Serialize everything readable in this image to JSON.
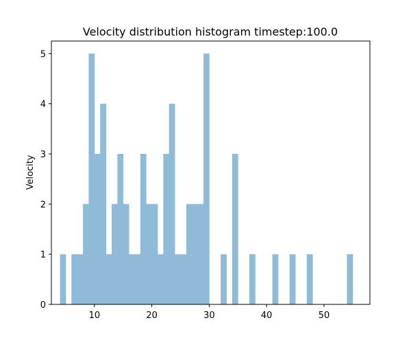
{
  "chart_data": {
    "type": "bar",
    "title": "Velocity distribution histogram timestep:100.0",
    "xlabel": "",
    "ylabel": "Velocity",
    "bar_color": "#8fbad8",
    "xlim": [
      2.5,
      58.0
    ],
    "ylim": [
      0,
      5.25
    ],
    "bin_width": 1.0,
    "x_ticks": [
      10,
      20,
      30,
      40,
      50
    ],
    "y_ticks": [
      0,
      1,
      2,
      3,
      4,
      5
    ],
    "bins": [
      {
        "x": 4.5,
        "count": 1
      },
      {
        "x": 6.5,
        "count": 1
      },
      {
        "x": 7.5,
        "count": 1
      },
      {
        "x": 8.5,
        "count": 2
      },
      {
        "x": 9.5,
        "count": 5
      },
      {
        "x": 10.5,
        "count": 3
      },
      {
        "x": 11.5,
        "count": 4
      },
      {
        "x": 12.5,
        "count": 1
      },
      {
        "x": 13.5,
        "count": 2
      },
      {
        "x": 14.5,
        "count": 3
      },
      {
        "x": 15.5,
        "count": 2
      },
      {
        "x": 16.5,
        "count": 1
      },
      {
        "x": 17.5,
        "count": 1
      },
      {
        "x": 18.5,
        "count": 3
      },
      {
        "x": 19.5,
        "count": 2
      },
      {
        "x": 20.5,
        "count": 2
      },
      {
        "x": 21.5,
        "count": 1
      },
      {
        "x": 22.5,
        "count": 3
      },
      {
        "x": 23.5,
        "count": 4
      },
      {
        "x": 24.5,
        "count": 1
      },
      {
        "x": 25.5,
        "count": 1
      },
      {
        "x": 26.5,
        "count": 2
      },
      {
        "x": 27.5,
        "count": 2
      },
      {
        "x": 28.5,
        "count": 2
      },
      {
        "x": 29.5,
        "count": 5
      },
      {
        "x": 32.5,
        "count": 1
      },
      {
        "x": 34.5,
        "count": 3
      },
      {
        "x": 37.5,
        "count": 1
      },
      {
        "x": 41.5,
        "count": 1
      },
      {
        "x": 44.5,
        "count": 1
      },
      {
        "x": 47.5,
        "count": 1
      },
      {
        "x": 54.5,
        "count": 1
      }
    ]
  }
}
